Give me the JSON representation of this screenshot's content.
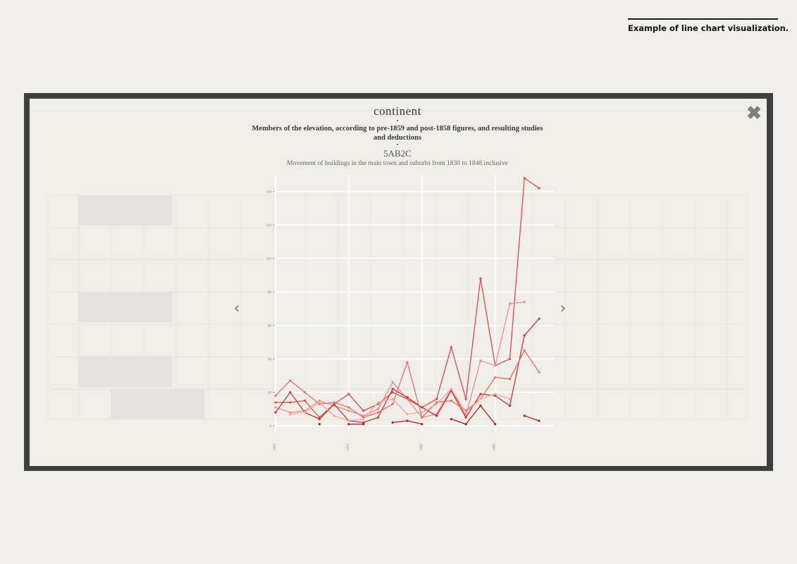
{
  "caption": "Example of line chart visualization.",
  "modal": {
    "close_icon": "close-x-icon",
    "prev_icon": "chevron-left-icon",
    "next_icon": "chevron-right-icon",
    "title": "continent",
    "separator": "•",
    "subtitle": "Members of the elevation, according to pre-1859 and post-1858 figures, and resulting studies and deductions",
    "code": "5AB2C",
    "description": "Movement of buildings in the main town and suburbs from 1830 to 1848 inclusive"
  },
  "chart_data": {
    "type": "line",
    "x": [
      1830,
      1831,
      1832,
      1833,
      1834,
      1835,
      1836,
      1837,
      1838,
      1839,
      1840,
      1841,
      1842,
      1843,
      1844,
      1845,
      1846,
      1847,
      1848
    ],
    "xticks": [
      "1830",
      "1835",
      "1840",
      "1845"
    ],
    "yticks": [
      "0",
      "20",
      "40",
      "60",
      "80",
      "100",
      "120",
      "140"
    ],
    "ylim": [
      0,
      150
    ],
    "grid": true,
    "colors": [
      "#e04a4a",
      "#ef8a8a",
      "#d42e2e",
      "#e96b6b",
      "#f5a3a3",
      "#b91818"
    ],
    "series": [
      {
        "values": [
          14,
          14,
          15,
          5,
          13,
          19,
          9,
          13,
          20,
          16,
          11,
          16,
          47,
          16,
          88,
          36,
          40,
          148,
          142
        ]
      },
      {
        "values": [
          11,
          8,
          9,
          15,
          12,
          9,
          6,
          10,
          26,
          16,
          5,
          7,
          22,
          6,
          39,
          36,
          73,
          74,
          null
        ]
      },
      {
        "values": [
          8,
          20,
          8,
          4,
          13,
          3,
          2,
          5,
          22,
          17,
          11,
          6,
          21,
          5,
          19,
          18,
          12,
          54,
          64
        ]
      },
      {
        "values": [
          18,
          27,
          20,
          13,
          14,
          11,
          5,
          8,
          13,
          38,
          5,
          14,
          15,
          9,
          16,
          29,
          28,
          45,
          32
        ]
      },
      {
        "values": [
          null,
          7,
          8,
          14,
          6,
          3,
          4,
          14,
          16,
          7,
          8,
          13,
          22,
          8,
          16,
          19,
          16,
          null,
          null
        ]
      },
      {
        "values": [
          null,
          null,
          null,
          1,
          null,
          1,
          1,
          null,
          2,
          3,
          1,
          null,
          4,
          1,
          12,
          1,
          null,
          6,
          3
        ]
      }
    ]
  }
}
